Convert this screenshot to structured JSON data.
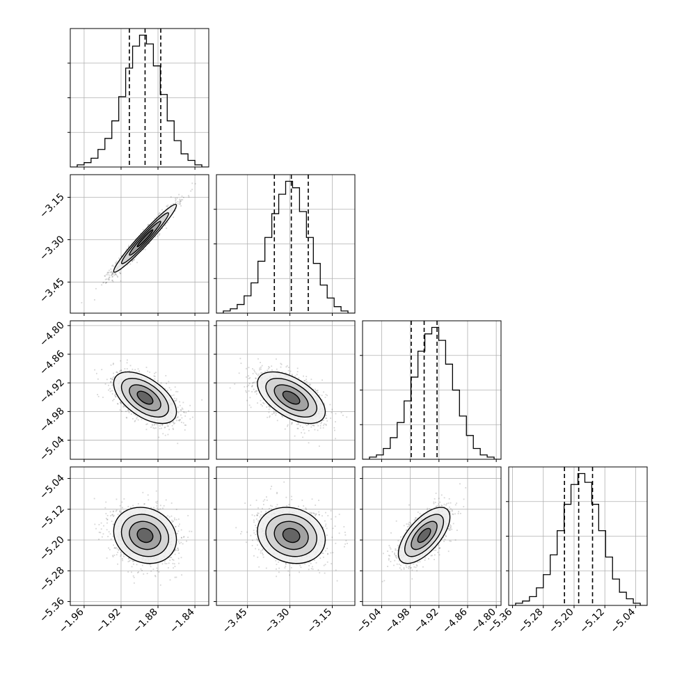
{
  "chart_data": {
    "type": "corner",
    "parameters": [
      {
        "index": 0,
        "range": [
          -1.975,
          -1.825
        ],
        "ticks": [
          -1.96,
          -1.92,
          -1.88,
          -1.84
        ],
        "tick_labels": [
          "−1.96",
          "−1.92",
          "−1.88",
          "−1.84"
        ],
        "quantiles": [
          -1.911,
          -1.894,
          -1.877
        ],
        "hist_counts": [
          0,
          1,
          2,
          4,
          8,
          13,
          21,
          32,
          45,
          55,
          60,
          56,
          46,
          33,
          21,
          12,
          6,
          3,
          1,
          0
        ]
      },
      {
        "index": 1,
        "range": [
          -3.56,
          -3.07
        ],
        "ticks": [
          -3.45,
          -3.3,
          -3.15
        ],
        "tick_labels": [
          "−3.45",
          "−3.30",
          "−3.15"
        ],
        "quantiles": [
          -3.355,
          -3.295,
          -3.235
        ],
        "hist_counts": [
          0,
          1,
          2,
          4,
          8,
          14,
          24,
          35,
          46,
          55,
          61,
          58,
          47,
          35,
          23,
          13,
          7,
          3,
          1,
          0
        ]
      },
      {
        "index": 2,
        "range": [
          -5.08,
          -4.79
        ],
        "ticks": [
          -5.04,
          -4.98,
          -4.92,
          -4.86,
          -4.8
        ],
        "tick_labels": [
          "−5.04",
          "−4.98",
          "−4.92",
          "−4.86",
          "−4.80"
        ],
        "y_tick_labels": [
          "−5.04",
          "−4.98",
          "−4.92",
          "−4.86",
          "−4.80"
        ],
        "quantiles": [
          -4.978,
          -4.951,
          -4.924
        ],
        "hist_counts": [
          0,
          1,
          2,
          5,
          10,
          17,
          27,
          38,
          50,
          58,
          61,
          55,
          44,
          32,
          20,
          11,
          5,
          2,
          1,
          0
        ]
      },
      {
        "index": 3,
        "range": [
          -5.37,
          -5.01
        ],
        "ticks": [
          -5.36,
          -5.28,
          -5.2,
          -5.12,
          -5.04
        ],
        "tick_labels": [
          "−5.36",
          "−5.28",
          "−5.20",
          "−5.12",
          "−5.04"
        ],
        "y_tick_labels": [
          "−5.36",
          "−5.28",
          "−5.20",
          "−5.12",
          "−5.04"
        ],
        "quantiles": [
          -5.225,
          -5.188,
          -5.152
        ],
        "hist_counts": [
          0,
          1,
          2,
          4,
          8,
          14,
          23,
          34,
          46,
          55,
          60,
          56,
          46,
          34,
          22,
          12,
          6,
          3,
          1,
          0
        ]
      }
    ],
    "correlations": [
      {
        "pair": [
          0,
          1
        ],
        "rho": 0.97
      },
      {
        "pair": [
          0,
          2
        ],
        "rho": -0.55
      },
      {
        "pair": [
          1,
          2
        ],
        "rho": -0.55
      },
      {
        "pair": [
          0,
          3
        ],
        "rho": -0.15
      },
      {
        "pair": [
          1,
          3
        ],
        "rho": -0.15
      },
      {
        "pair": [
          2,
          3
        ],
        "rho": 0.65
      }
    ],
    "contour_levels_sigma": [
      0.5,
      1.0,
      1.5,
      2.0
    ],
    "grid": true,
    "colors": {
      "line": "#000000",
      "points": "#444444",
      "grid": "#b0b0b0"
    }
  }
}
